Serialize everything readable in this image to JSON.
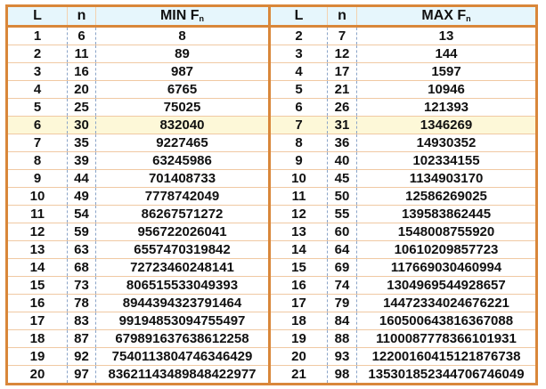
{
  "colors": {
    "border": "#d9873a",
    "header_bg": "#e6f6fc",
    "highlight_row": "#fdf8d8",
    "row_line": "#f0c9a3",
    "dashed_divider": "#8aa4c8"
  },
  "min_table": {
    "headers": {
      "L": "L",
      "n": "n",
      "F": "MIN F",
      "F_sub": "n"
    },
    "rows": [
      {
        "L": "1",
        "n": "6",
        "F": "8"
      },
      {
        "L": "2",
        "n": "11",
        "F": "89"
      },
      {
        "L": "3",
        "n": "16",
        "F": "987"
      },
      {
        "L": "4",
        "n": "20",
        "F": "6765"
      },
      {
        "L": "5",
        "n": "25",
        "F": "75025"
      },
      {
        "L": "6",
        "n": "30",
        "F": "832040",
        "highlight": true
      },
      {
        "L": "7",
        "n": "35",
        "F": "9227465"
      },
      {
        "L": "8",
        "n": "39",
        "F": "63245986"
      },
      {
        "L": "9",
        "n": "44",
        "F": "701408733"
      },
      {
        "L": "10",
        "n": "49",
        "F": "7778742049"
      },
      {
        "L": "11",
        "n": "54",
        "F": "86267571272"
      },
      {
        "L": "12",
        "n": "59",
        "F": "956722026041"
      },
      {
        "L": "13",
        "n": "63",
        "F": "6557470319842"
      },
      {
        "L": "14",
        "n": "68",
        "F": "72723460248141"
      },
      {
        "L": "15",
        "n": "73",
        "F": "806515533049393"
      },
      {
        "L": "16",
        "n": "78",
        "F": "8944394323791464"
      },
      {
        "L": "17",
        "n": "83",
        "F": "99194853094755497"
      },
      {
        "L": "18",
        "n": "87",
        "F": "679891637638612258"
      },
      {
        "L": "19",
        "n": "92",
        "F": "7540113804746346429"
      },
      {
        "L": "20",
        "n": "97",
        "F": "83621143489848422977"
      }
    ]
  },
  "max_table": {
    "headers": {
      "L": "L",
      "n": "n",
      "F": "MAX F",
      "F_sub": "n"
    },
    "rows": [
      {
        "L": "2",
        "n": "7",
        "F": "13"
      },
      {
        "L": "3",
        "n": "12",
        "F": "144"
      },
      {
        "L": "4",
        "n": "17",
        "F": "1597"
      },
      {
        "L": "5",
        "n": "21",
        "F": "10946"
      },
      {
        "L": "6",
        "n": "26",
        "F": "121393"
      },
      {
        "L": "7",
        "n": "31",
        "F": "1346269",
        "highlight": true
      },
      {
        "L": "8",
        "n": "36",
        "F": "14930352"
      },
      {
        "L": "9",
        "n": "40",
        "F": "102334155"
      },
      {
        "L": "10",
        "n": "45",
        "F": "1134903170"
      },
      {
        "L": "11",
        "n": "50",
        "F": "12586269025"
      },
      {
        "L": "12",
        "n": "55",
        "F": "139583862445"
      },
      {
        "L": "13",
        "n": "60",
        "F": "1548008755920"
      },
      {
        "L": "14",
        "n": "64",
        "F": "10610209857723"
      },
      {
        "L": "15",
        "n": "69",
        "F": "117669030460994"
      },
      {
        "L": "16",
        "n": "74",
        "F": "1304969544928657"
      },
      {
        "L": "17",
        "n": "79",
        "F": "14472334024676221"
      },
      {
        "L": "18",
        "n": "84",
        "F": "160500643816367088"
      },
      {
        "L": "19",
        "n": "88",
        "F": "1100087778366101931"
      },
      {
        "L": "20",
        "n": "93",
        "F": "12200160415121876738"
      },
      {
        "L": "21",
        "n": "98",
        "F": "135301852344706746049"
      }
    ]
  }
}
